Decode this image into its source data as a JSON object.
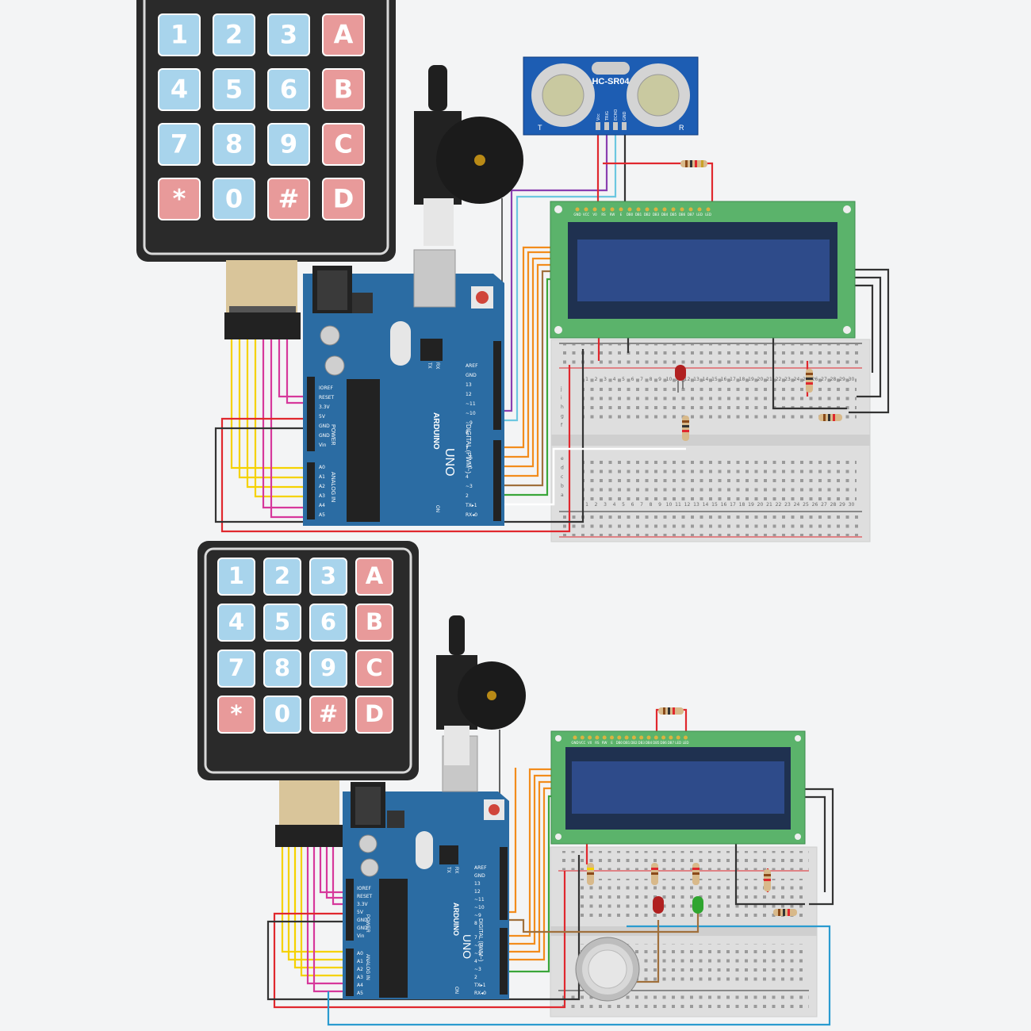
{
  "colors": {
    "key_blue": "#a8d4ec",
    "key_red": "#e89a9a",
    "board_blue": "#2b6ca3",
    "lcd_green": "#5bb36b",
    "lcd_screen": "#2e4b8a",
    "sensor_blue": "#1d5db3",
    "wire_red": "#e0282e",
    "wire_black": "#333333",
    "wire_yellow": "#f5d200",
    "wire_magenta": "#d6389b",
    "wire_orange": "#f28c1c",
    "wire_purple": "#8a3fb0",
    "wire_cyan": "#6cc7e0",
    "wire_green": "#3aa63a",
    "wire_blue": "#2a9bd0",
    "wire_brown": "#a0703c"
  },
  "keypad": {
    "rows": [
      [
        {
          "label": "1",
          "tone": "blue"
        },
        {
          "label": "2",
          "tone": "blue"
        },
        {
          "label": "3",
          "tone": "blue"
        },
        {
          "label": "A",
          "tone": "red"
        }
      ],
      [
        {
          "label": "4",
          "tone": "blue"
        },
        {
          "label": "5",
          "tone": "blue"
        },
        {
          "label": "6",
          "tone": "blue"
        },
        {
          "label": "B",
          "tone": "red"
        }
      ],
      [
        {
          "label": "7",
          "tone": "blue"
        },
        {
          "label": "8",
          "tone": "blue"
        },
        {
          "label": "9",
          "tone": "blue"
        },
        {
          "label": "C",
          "tone": "red"
        }
      ],
      [
        {
          "label": "*",
          "tone": "red"
        },
        {
          "label": "0",
          "tone": "blue"
        },
        {
          "label": "#",
          "tone": "red"
        },
        {
          "label": "D",
          "tone": "red"
        }
      ]
    ]
  },
  "sensor": {
    "model": "HC-SR04",
    "pins": [
      "Vcc",
      "TRIG",
      "ECHO",
      "GND"
    ],
    "left_mark": "T",
    "right_mark": "R"
  },
  "arduino": {
    "brand": "ARDUINO",
    "model": "UNO",
    "power_header": "POWER",
    "analog_header": "ANALOG IN",
    "digital_header": "DIGITAL (PWM~)",
    "power_pins": [
      "IOREF",
      "RESET",
      "3.3V",
      "5V",
      "GND",
      "GND",
      "Vin"
    ],
    "analog_pins": [
      "A0",
      "A1",
      "A2",
      "A3",
      "A4",
      "A5"
    ],
    "top_pins": [
      "AREF",
      "GND",
      "13",
      "12",
      "~11",
      "~10",
      "~9",
      "8"
    ],
    "bottom_pins": [
      "7",
      "~6",
      "~5",
      "4",
      "~3",
      "2",
      "TX▸1",
      "RX◂0"
    ],
    "tx_label": "TX",
    "rx_label": "RX",
    "on_label": "ON"
  },
  "lcd": {
    "pins": [
      "GND",
      "VCC",
      "V0",
      "RS",
      "RW",
      "E",
      "DB0",
      "DB1",
      "DB2",
      "DB3",
      "DB4",
      "DB5",
      "DB6",
      "DB7",
      "LED",
      "LED"
    ]
  },
  "breadboard": {
    "columns": [
      "1",
      "2",
      "3",
      "4",
      "5",
      "6",
      "7",
      "8",
      "9",
      "10",
      "11",
      "12",
      "13",
      "14",
      "15",
      "16",
      "17",
      "18",
      "19",
      "20",
      "21",
      "22",
      "23",
      "24",
      "25",
      "26",
      "27",
      "28",
      "29",
      "30"
    ],
    "row_letters_top": [
      "j",
      "i",
      "h",
      "g",
      "f"
    ],
    "row_letters_bottom": [
      "e",
      "d",
      "c",
      "b",
      "a"
    ]
  }
}
